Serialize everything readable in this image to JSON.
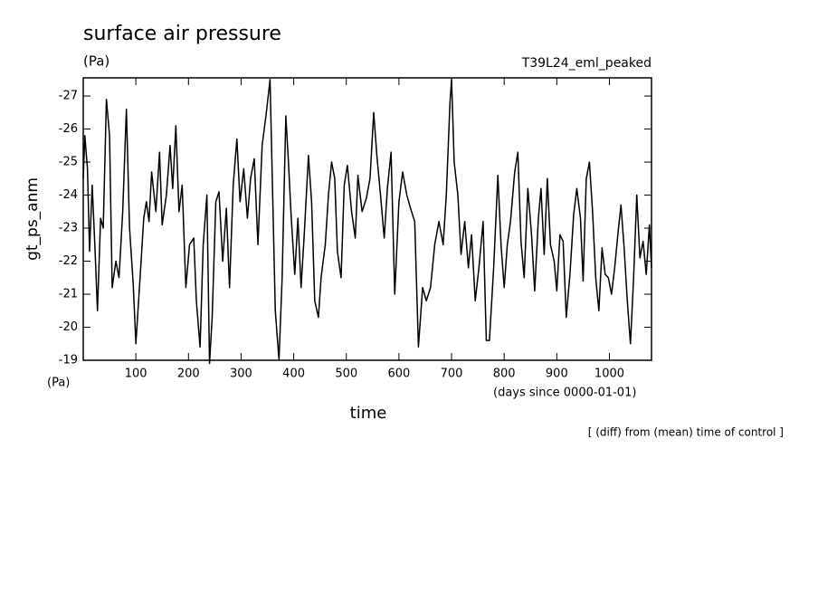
{
  "chart_data": {
    "type": "line",
    "title": "surface air pressure",
    "unit_top": "(Pa)",
    "run_name": "T39L24_eml_peaked",
    "y_label": "gt_ps_anm",
    "unit_bottom": "(Pa)",
    "x_label": "time",
    "x_unit": "(days since 0000-01-01)",
    "note": "[ (diff) from (mean) time of control ]",
    "color": "#000000",
    "xlim": [
      0,
      1080
    ],
    "ylim": [
      -19,
      -27.55
    ],
    "xticks": [
      100,
      200,
      300,
      400,
      500,
      600,
      700,
      800,
      900,
      1000
    ],
    "yticks": [
      -19,
      -20,
      -21,
      -22,
      -23,
      -24,
      -25,
      -26,
      -27
    ],
    "x": [
      0,
      3,
      8,
      12,
      17,
      22,
      27,
      33,
      38,
      44,
      50,
      55,
      62,
      68,
      75,
      82,
      88,
      95,
      100,
      108,
      115,
      120,
      125,
      130,
      138,
      145,
      150,
      158,
      165,
      170,
      176,
      182,
      188,
      195,
      202,
      210,
      215,
      222,
      228,
      235,
      240,
      245,
      252,
      258,
      265,
      272,
      278,
      285,
      292,
      298,
      305,
      312,
      318,
      325,
      332,
      340,
      348,
      355,
      360,
      365,
      372,
      378,
      385,
      390,
      395,
      402,
      408,
      414,
      420,
      428,
      434,
      440,
      447,
      452,
      460,
      466,
      472,
      478,
      483,
      490,
      496,
      502,
      510,
      517,
      522,
      530,
      538,
      545,
      552,
      558,
      565,
      572,
      578,
      585,
      592,
      600,
      607,
      615,
      622,
      630,
      637,
      645,
      652,
      660,
      668,
      676,
      684,
      690,
      697,
      700,
      705,
      712,
      718,
      725,
      732,
      738,
      745,
      752,
      760,
      766,
      772,
      780,
      788,
      794,
      800,
      806,
      812,
      820,
      826,
      832,
      838,
      845,
      852,
      858,
      865,
      870,
      876,
      882,
      888,
      895,
      900,
      906,
      912,
      918,
      925,
      932,
      938,
      945,
      950,
      956,
      962,
      968,
      974,
      980,
      986,
      992,
      998,
      1004,
      1010,
      1016,
      1022,
      1028,
      1034,
      1040,
      1046,
      1052,
      1058,
      1064,
      1070,
      1076,
      1080
    ],
    "values": [
      -24.5,
      -25.8,
      -24.8,
      -22.3,
      -24.3,
      -22.5,
      -20.5,
      -23.3,
      -23,
      -26.9,
      -25.8,
      -21.2,
      -22,
      -21.5,
      -23.5,
      -26.6,
      -23,
      -21.3,
      -19.5,
      -21.5,
      -23.3,
      -23.8,
      -23.2,
      -24.7,
      -23.5,
      -25.3,
      -23.1,
      -24,
      -25.5,
      -24.2,
      -26.1,
      -23.5,
      -24.3,
      -21.2,
      -22.5,
      -22.7,
      -20.8,
      -19.4,
      -22.5,
      -24,
      -18.9,
      -20.3,
      -23.8,
      -24.1,
      -22,
      -23.6,
      -21.2,
      -24.3,
      -25.7,
      -23.8,
      -24.8,
      -23.3,
      -24.5,
      -25.1,
      -22.5,
      -25.5,
      -26.5,
      -27.5,
      -24,
      -20.5,
      -19,
      -21.5,
      -26.4,
      -25,
      -23.4,
      -21.6,
      -23.3,
      -21.2,
      -22.8,
      -25.2,
      -23.8,
      -20.8,
      -20.3,
      -21.5,
      -22.5,
      -24,
      -25,
      -24.5,
      -22.3,
      -21.5,
      -24.3,
      -24.9,
      -23.5,
      -22.7,
      -24.6,
      -23.5,
      -23.9,
      -24.5,
      -26.5,
      -25.2,
      -24,
      -22.7,
      -24.2,
      -25.3,
      -21,
      -23.8,
      -24.7,
      -24,
      -23.6,
      -23.2,
      -19.4,
      -21.2,
      -20.8,
      -21.2,
      -22.5,
      -23.2,
      -22.5,
      -24,
      -26.8,
      -27.5,
      -25,
      -24,
      -22.2,
      -23.2,
      -21.8,
      -22.8,
      -20.8,
      -21.8,
      -23.2,
      -19.6,
      -19.6,
      -21.8,
      -24.6,
      -22.5,
      -21.2,
      -22.5,
      -23.2,
      -24.7,
      -25.3,
      -22.6,
      -21.5,
      -24.2,
      -22.8,
      -21.1,
      -23.3,
      -24.2,
      -22.2,
      -24.5,
      -22.5,
      -22,
      -21.1,
      -22.8,
      -22.6,
      -20.3,
      -21.6,
      -23.4,
      -24.2,
      -23.3,
      -21.4,
      -24.5,
      -25,
      -23.5,
      -21.5,
      -20.5,
      -22.4,
      -21.6,
      -21.5,
      -21,
      -21.8,
      -22.8,
      -23.7,
      -22.4,
      -20.8,
      -19.5,
      -21.5,
      -24,
      -22.1,
      -22.6,
      -21.6,
      -23.1,
      -21.8
    ]
  }
}
